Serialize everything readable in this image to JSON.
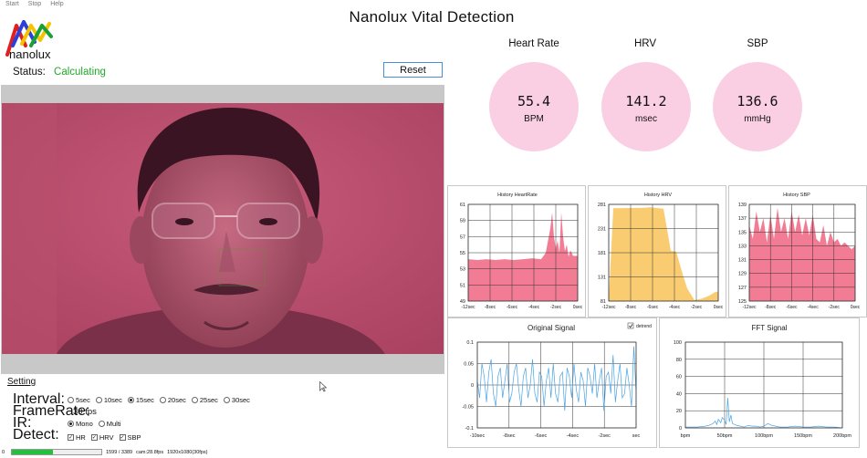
{
  "menu": [
    "Start",
    "Stop",
    "Help"
  ],
  "logo": {
    "text": "nanolux"
  },
  "title": "Nanolux Vital Detection",
  "status": {
    "label": "Status:",
    "value": "Calculating"
  },
  "reset_label": "Reset",
  "vitals": [
    {
      "title": "Heart Rate",
      "value": "55.4",
      "unit": "BPM"
    },
    {
      "title": "HRV",
      "value": "141.2",
      "unit": "msec"
    },
    {
      "title": "SBP",
      "value": "136.6",
      "unit": "mmHg"
    }
  ],
  "history_x_ticks": [
    "-12sec",
    "-8sec",
    "-6sec",
    "-4sec",
    "-2sec",
    "0sec"
  ],
  "signal_x_ticks": [
    "-10sec",
    "-8sec",
    "-6sec",
    "-4sec",
    "-2sec",
    "sec"
  ],
  "fft_x_ticks": [
    "bpm",
    "50bpm",
    "100bpm",
    "150bpm",
    "200bpm"
  ],
  "detrend_label": "detrend",
  "settings": {
    "title": "Setting",
    "interval_label": "Interval:",
    "interval_options": [
      "5sec",
      "10sec",
      "15sec",
      "20sec",
      "25sec",
      "30sec"
    ],
    "interval_selected": "15sec",
    "framerate_label": "FrameRate:",
    "framerate_value": "30 fps",
    "ir_label": "IR:",
    "ir_options": [
      "Mono",
      "Multi"
    ],
    "ir_selected": "Mono",
    "detect_label": "Detect:",
    "detect_options": [
      "HR",
      "HRV",
      "SBP"
    ]
  },
  "footer": {
    "progress_left": "0",
    "progress_fraction": 0.46,
    "frames": "1599 / 3389",
    "cam": "cam:28.8fps",
    "resolution": "1920x1080(30fps)"
  },
  "colors": {
    "accent_green": "#22a82a",
    "hist_pink": "#f27c93",
    "hist_orange": "#f9cc72",
    "signal_blue": "#4aa3e3",
    "vital_circle": "#fbcfe3"
  },
  "chart_data": [
    {
      "type": "area",
      "title": "History HeartRate",
      "x": [
        -12,
        -11,
        -10,
        -9,
        -8,
        -7,
        -6,
        -5,
        -4,
        -3.5,
        -3,
        -2.8,
        -2.6,
        -2.4,
        -2.2,
        -2,
        -1.8,
        -1.6,
        -1.4,
        -1.2,
        -1,
        -0.8,
        -0.5,
        0
      ],
      "y": [
        54.2,
        54.1,
        54.2,
        54.1,
        54.2,
        54.1,
        54.2,
        54.3,
        54.2,
        55,
        58,
        60,
        57,
        55.5,
        56.5,
        55,
        60,
        57,
        55.2,
        56,
        54.5,
        55.3,
        54.6,
        54.6
      ],
      "xlim": [
        -12,
        0
      ],
      "ylim": [
        49,
        61
      ],
      "yticks": [
        49,
        51,
        53,
        55,
        57,
        59,
        61
      ],
      "color": "#f27c93"
    },
    {
      "type": "area",
      "title": "History HRV",
      "x": [
        -12,
        -11.5,
        -8,
        -7.5,
        -6.5,
        -6,
        -5.2,
        -4.6,
        -4,
        -3.4,
        -2.6,
        -1.8,
        -1,
        -0.3,
        0
      ],
      "y": [
        82,
        273,
        274,
        275,
        273,
        272,
        185,
        183,
        143,
        107,
        83,
        86,
        92,
        100,
        100
      ],
      "xlim": [
        -12,
        0
      ],
      "ylim": [
        81,
        281
      ],
      "yticks": [
        81,
        131,
        181,
        231,
        281
      ],
      "color": "#f9cc72"
    },
    {
      "type": "area",
      "title": "History SBP",
      "x": [
        -12,
        -11.6,
        -11.2,
        -10.8,
        -10.4,
        -10,
        -9.6,
        -9.2,
        -8.8,
        -8.4,
        -8,
        -7.6,
        -7.2,
        -6.8,
        -6.4,
        -6,
        -5.6,
        -5.2,
        -4.8,
        -4.4,
        -4,
        -3.6,
        -3.2,
        -2.8,
        -2.4,
        -2,
        -1.6,
        -1.2,
        -0.8,
        -0.4,
        0
      ],
      "y": [
        136,
        134,
        138,
        135,
        137,
        133.5,
        137.5,
        134,
        138.5,
        135,
        137,
        134,
        138,
        135,
        137.5,
        134.5,
        137,
        134.5,
        137.5,
        134,
        133.5,
        136,
        133,
        135,
        133.5,
        134,
        133,
        133.5,
        133,
        132.5,
        133
      ],
      "xlim": [
        -12,
        0
      ],
      "ylim": [
        125,
        139
      ],
      "yticks": [
        125,
        127,
        129,
        131,
        133,
        135,
        137,
        139
      ],
      "color": "#f27c93"
    },
    {
      "type": "line",
      "title": "Original Signal",
      "xlim": [
        -10,
        0
      ],
      "ylim": [
        -0.1,
        0.1
      ],
      "yticks": [
        -0.1,
        -0.05,
        0,
        0.05,
        0.1
      ],
      "y": [
        0.01,
        -0.03,
        0.05,
        0.02,
        -0.04,
        0.03,
        0.06,
        -0.02,
        -0.05,
        0.02,
        0.04,
        -0.03,
        0.01,
        0.05,
        -0.04,
        -0.02,
        0.03,
        0.05,
        -0.01,
        -0.05,
        0.02,
        0.04,
        -0.03,
        0.0,
        0.06,
        -0.02,
        -0.04,
        0.03,
        0.02,
        -0.05,
        0.01,
        0.04,
        -0.03,
        0.05,
        -0.02,
        -0.04,
        0.02,
        0.03,
        -0.06,
        0.04,
        0.02,
        -0.03,
        0.05,
        -0.01,
        -0.04,
        0.03,
        0.01,
        -0.05,
        0.04,
        0.02,
        -0.02,
        0.05,
        -0.03,
        0.01,
        0.04,
        -0.06,
        0.02,
        0.03,
        -0.02,
        0.07,
        -0.04,
        0.01,
        0.05,
        -0.03,
        -0.02,
        0.04,
        0.0,
        -0.05,
        0.09,
        -0.02
      ],
      "color": "#4aa3e3"
    },
    {
      "type": "line",
      "title": "FFT Signal",
      "xlim": [
        0,
        200
      ],
      "ylim": [
        0,
        100
      ],
      "yticks": [
        0,
        20,
        40,
        60,
        80,
        100
      ],
      "x": [
        0,
        15,
        25,
        30,
        35,
        38,
        40,
        42,
        45,
        47,
        50,
        52,
        54,
        56,
        58,
        60,
        65,
        70,
        75,
        80,
        85,
        90,
        95,
        100,
        105,
        110,
        115,
        120,
        125,
        130,
        140,
        150,
        160,
        170,
        180,
        190,
        200
      ],
      "y": [
        1,
        1,
        2,
        3,
        5,
        8,
        4,
        10,
        6,
        12,
        9,
        4,
        35,
        7,
        15,
        5,
        3,
        2,
        1,
        3,
        2,
        2,
        1,
        2,
        5,
        3,
        2,
        1,
        1,
        1,
        2,
        1,
        1,
        2,
        1,
        1,
        0
      ],
      "color": "#4aa3e3"
    }
  ]
}
